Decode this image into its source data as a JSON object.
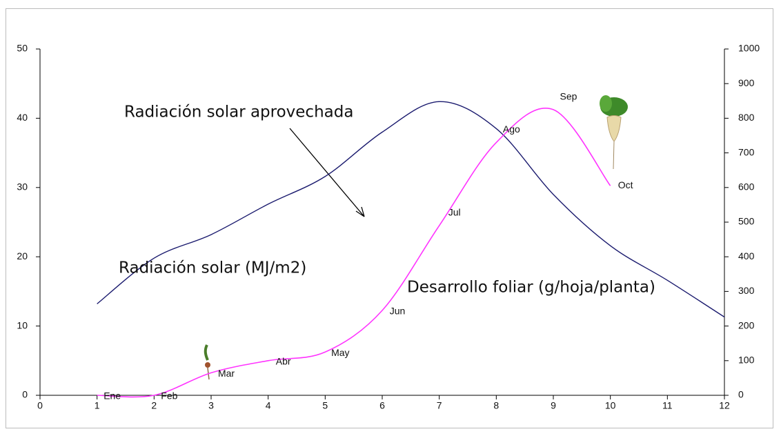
{
  "chart_data": {
    "type": "line",
    "x": [
      1,
      2,
      3,
      4,
      5,
      6,
      7,
      8,
      9,
      10,
      11,
      12
    ],
    "xlim": [
      0,
      12
    ],
    "xticks": [
      0,
      1,
      2,
      3,
      4,
      5,
      6,
      7,
      8,
      9,
      10,
      11,
      12
    ],
    "ylim": [
      0,
      50
    ],
    "yticks": [
      0,
      10,
      20,
      30,
      40,
      50
    ],
    "y2lim": [
      0,
      1000
    ],
    "y2ticks": [
      0,
      100,
      200,
      300,
      400,
      500,
      600,
      700,
      800,
      900,
      1000
    ],
    "annotation": "Radiación solar aprovechada",
    "series": [
      {
        "name": "Radiación solar (MJ/m2)",
        "color": "#1a1a6e",
        "values": [
          13.2,
          19.8,
          23.2,
          27.6,
          31.6,
          38,
          42.4,
          38.5,
          29,
          21.6,
          16.6,
          11.3
        ]
      },
      {
        "name": "Desarrollo foliar (g/hoja/planta)",
        "color": "#ff33ff",
        "axis": "y2",
        "values": [
          0,
          0,
          65,
          100,
          125,
          245,
          490,
          730,
          825,
          605,
          null,
          null
        ],
        "labels": [
          "Ene",
          "Feb",
          "Mar",
          "Abr",
          "May",
          "Jun",
          "Jul",
          "Ago",
          "Sep",
          "Oct",
          null,
          null
        ]
      }
    ]
  }
}
